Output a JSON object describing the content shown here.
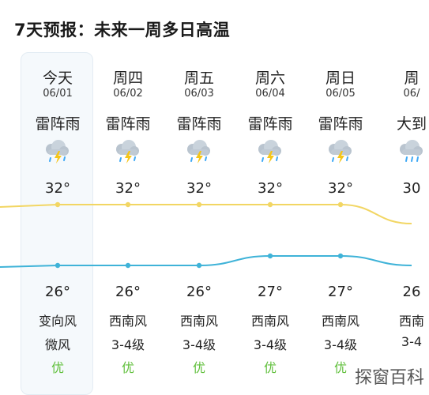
{
  "title": "7天预报：未来一周多日高温",
  "colors": {
    "high_line": "#f2d663",
    "low_line": "#3fb3d8",
    "aqi_good": "#5fbf3a",
    "today_bg": "#f5f9fc"
  },
  "days": [
    {
      "day": "今天",
      "date": "06/01",
      "condition": "雷阵雨",
      "icon": "thunderstorm-icon",
      "high": "32°",
      "low": "26°",
      "wind_dir": "变向风",
      "wind_level": "微风",
      "aqi": "优"
    },
    {
      "day": "周四",
      "date": "06/02",
      "condition": "雷阵雨",
      "icon": "thunderstorm-icon",
      "high": "32°",
      "low": "26°",
      "wind_dir": "西南风",
      "wind_level": "3-4级",
      "aqi": "优"
    },
    {
      "day": "周五",
      "date": "06/03",
      "condition": "雷阵雨",
      "icon": "thunderstorm-icon",
      "high": "32°",
      "low": "26°",
      "wind_dir": "西南风",
      "wind_level": "3-4级",
      "aqi": "优"
    },
    {
      "day": "周六",
      "date": "06/04",
      "condition": "雷阵雨",
      "icon": "thunderstorm-icon",
      "high": "32°",
      "low": "27°",
      "wind_dir": "西南风",
      "wind_level": "3-4级",
      "aqi": "优"
    },
    {
      "day": "周日",
      "date": "06/05",
      "condition": "雷阵雨",
      "icon": "thunderstorm-icon",
      "high": "32°",
      "low": "27°",
      "wind_dir": "西南风",
      "wind_level": "3-4级",
      "aqi": "优"
    },
    {
      "day": "周",
      "date": "06/",
      "condition": "大到",
      "icon": "rain-icon",
      "high": "30",
      "low": "26",
      "wind_dir": "西南",
      "wind_level": "3-4",
      "aqi": ""
    }
  ],
  "high_temps": [
    32,
    32,
    32,
    32,
    32,
    30
  ],
  "low_temps": [
    26,
    26,
    26,
    27,
    27,
    26
  ],
  "watermark": "探窗百科"
}
